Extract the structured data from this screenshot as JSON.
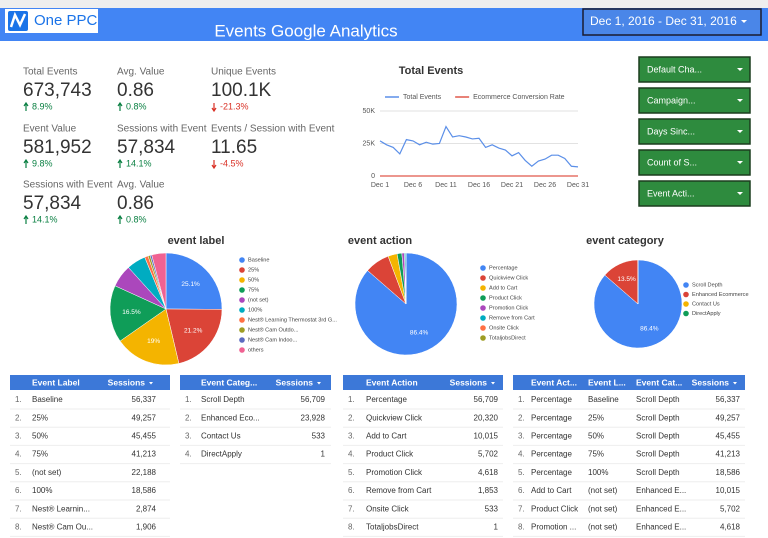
{
  "header": {
    "logo": "One PPC",
    "title": "Events Google Analytics",
    "date_range": "Dec 1, 2016 - Dec 31, 2016"
  },
  "scorecards": [
    {
      "label": "Total Events",
      "value": "673,743",
      "change": "8.9%",
      "direction": "up"
    },
    {
      "label": "Avg. Value",
      "value": "0.86",
      "change": "0.8%",
      "direction": "up"
    },
    {
      "label": "Unique Events",
      "value": "100.1K",
      "change": "-21.3%",
      "direction": "down"
    },
    {
      "label": "Event Value",
      "value": "581,952",
      "change": "9.8%",
      "direction": "up"
    },
    {
      "label": "Sessions with Event",
      "value": "57,834",
      "change": "14.1%",
      "direction": "up"
    },
    {
      "label": "Events / Session with Event",
      "value": "11.65",
      "change": "-4.5%",
      "direction": "down"
    },
    {
      "label": "Sessions with Event",
      "value": "57,834",
      "change": "14.1%",
      "direction": "up"
    },
    {
      "label": "Avg. Value",
      "value": "0.86",
      "change": "0.8%",
      "direction": "up"
    }
  ],
  "filters": [
    "Default Cha...",
    "Campaign...",
    "Days Sinc...",
    "Count of S...",
    "Event Acti..."
  ],
  "chart_data": [
    {
      "type": "line",
      "title": "Total Events",
      "x": [
        "Dec 1",
        null,
        null,
        null,
        null,
        "Dec 6",
        null,
        null,
        null,
        null,
        "Dec 11",
        null,
        null,
        null,
        null,
        "Dec 16",
        null,
        null,
        null,
        null,
        "Dec 21",
        null,
        null,
        null,
        null,
        "Dec 26",
        null,
        null,
        null,
        null,
        "Dec 31"
      ],
      "series": [
        {
          "name": "Total Events",
          "color": "#5b8fe8",
          "values": [
            27000,
            24000,
            22000,
            17000,
            28000,
            27000,
            24000,
            26000,
            24500,
            25000,
            38000,
            30000,
            31000,
            30000,
            28500,
            29000,
            22000,
            24000,
            21500,
            20000,
            15500,
            18000,
            12000,
            7500,
            11500,
            13000,
            16000,
            16000,
            13500,
            7500,
            7000
          ]
        },
        {
          "name": "Ecommerce Conversion Rate",
          "color": "#e0584a",
          "values": [
            0,
            0,
            0,
            0,
            0,
            0,
            0,
            0,
            0,
            0,
            0,
            0,
            0,
            0,
            0,
            0,
            0,
            0,
            0,
            0,
            0,
            0,
            0,
            0,
            0,
            0,
            0,
            0,
            0,
            0,
            0
          ]
        }
      ],
      "ylim": [
        0,
        50000
      ],
      "yticks": [
        0,
        {
          "value": 25000,
          "label": "25K"
        },
        {
          "value": 50000,
          "label": "50K"
        }
      ],
      "grid": true
    },
    {
      "type": "pie",
      "title": "event label",
      "categories": [
        "Baseline",
        "25%",
        "50%",
        "75%",
        "(not set)",
        "100%",
        "Nest® Learning Thermostat 3rd G...",
        "Nest® Cam Outdo...",
        "Nest® Cam Indoo...",
        "others"
      ],
      "values": [
        25.1,
        21.2,
        19,
        16.5,
        6.5,
        5.5,
        1.0,
        0.6,
        0.5,
        4.1
      ],
      "value_labels": [
        "25.1%",
        "21.2%",
        "19%",
        "16.5%",
        null,
        null,
        null,
        null,
        null,
        null
      ],
      "colors": [
        "#4285f4",
        "#db4437",
        "#f4b400",
        "#0f9d58",
        "#ab47bc",
        "#00acc1",
        "#ff7043",
        "#9e9d24",
        "#5c6bc0",
        "#f06292"
      ]
    },
    {
      "type": "pie",
      "title": "event action",
      "categories": [
        "Percentage",
        "Quickview Click",
        "Add to Cart",
        "Product Click",
        "Promotion Click",
        "Remove from Cart",
        "Onsite Click",
        "TotaljobsDirect"
      ],
      "values": [
        86.4,
        7.9,
        2.9,
        1.5,
        0.8,
        0.4,
        0.08,
        0.02
      ],
      "value_labels": [
        "86.4%",
        null,
        null,
        null,
        null,
        null,
        null,
        null
      ],
      "colors": [
        "#4285f4",
        "#db4437",
        "#f4b400",
        "#0f9d58",
        "#ab47bc",
        "#00acc1",
        "#ff7043",
        "#9e9d24"
      ]
    },
    {
      "type": "pie",
      "title": "event category",
      "categories": [
        "Scroll Depth",
        "Enhanced Ecommerce",
        "Contact Us",
        "DirectApply"
      ],
      "values": [
        86.4,
        13.5,
        0.08,
        0.02
      ],
      "value_labels": [
        "86.4%",
        "13.5%",
        null,
        null
      ],
      "colors": [
        "#4285f4",
        "#db4437",
        "#f4b400",
        "#0f9d58"
      ]
    }
  ],
  "tables": [
    {
      "columns": [
        "Event Label",
        "Sessions"
      ],
      "rows": [
        [
          "1.",
          "Baseline",
          "56,337"
        ],
        [
          "2.",
          "25%",
          "49,257"
        ],
        [
          "3.",
          "50%",
          "45,455"
        ],
        [
          "4.",
          "75%",
          "41,213"
        ],
        [
          "5.",
          "(not set)",
          "22,188"
        ],
        [
          "6.",
          "100%",
          "18,586"
        ],
        [
          "7.",
          "Nest® Learnin...",
          "2,874"
        ],
        [
          "8.",
          "Nest® Cam Ou...",
          "1,906"
        ]
      ]
    },
    {
      "columns": [
        "Event Categ...",
        "Sessions"
      ],
      "rows": [
        [
          "1.",
          "Scroll Depth",
          "56,709"
        ],
        [
          "2.",
          "Enhanced Eco...",
          "23,928"
        ],
        [
          "3.",
          "Contact Us",
          "533"
        ],
        [
          "4.",
          "DirectApply",
          "1"
        ]
      ]
    },
    {
      "columns": [
        "Event Action",
        "Sessions"
      ],
      "rows": [
        [
          "1.",
          "Percentage",
          "56,709"
        ],
        [
          "2.",
          "Quickview Click",
          "20,320"
        ],
        [
          "3.",
          "Add to Cart",
          "10,015"
        ],
        [
          "4.",
          "Product Click",
          "5,702"
        ],
        [
          "5.",
          "Promotion Click",
          "4,618"
        ],
        [
          "6.",
          "Remove from Cart",
          "1,853"
        ],
        [
          "7.",
          "Onsite Click",
          "533"
        ],
        [
          "8.",
          "TotaljobsDirect",
          "1"
        ]
      ]
    },
    {
      "columns": [
        "Event Act...",
        "Event L...",
        "Event Cat...",
        "Sessions"
      ],
      "rows": [
        [
          "1.",
          "Percentage",
          "Baseline",
          "Scroll Depth",
          "56,337"
        ],
        [
          "2.",
          "Percentage",
          "25%",
          "Scroll Depth",
          "49,257"
        ],
        [
          "3.",
          "Percentage",
          "50%",
          "Scroll Depth",
          "45,455"
        ],
        [
          "4.",
          "Percentage",
          "75%",
          "Scroll Depth",
          "41,213"
        ],
        [
          "5.",
          "Percentage",
          "100%",
          "Scroll Depth",
          "18,586"
        ],
        [
          "6.",
          "Add to Cart",
          "(not set)",
          "Enhanced E...",
          "10,015"
        ],
        [
          "7.",
          "Product Click",
          "(not set)",
          "Enhanced E...",
          "5,702"
        ],
        [
          "8.",
          "Promotion ...",
          "(not set)",
          "Enhanced E...",
          "4,618"
        ]
      ]
    }
  ]
}
